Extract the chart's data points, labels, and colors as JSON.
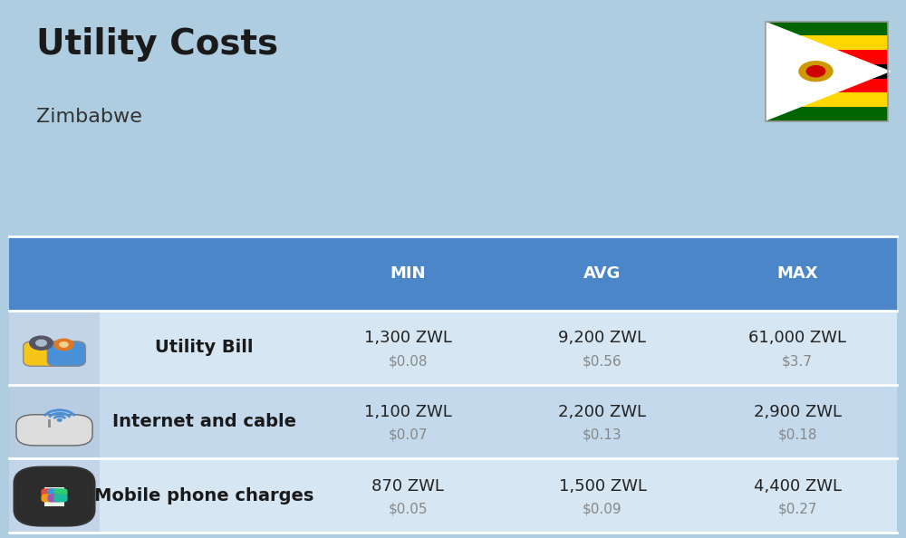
{
  "title": "Utility Costs",
  "subtitle": "Zimbabwe",
  "background_color": "#aecde0",
  "header_bg_color": "#4a86c8",
  "header_text_color": "#ffffff",
  "row_bg_color_1": "#d6e6f2",
  "row_bg_color_2": "#c5d9ec",
  "headers": [
    "",
    "",
    "MIN",
    "AVG",
    "MAX"
  ],
  "rows": [
    {
      "label": "Utility Bill",
      "min_zwl": "1,300 ZWL",
      "min_usd": "$0.08",
      "avg_zwl": "9,200 ZWL",
      "avg_usd": "$0.56",
      "max_zwl": "61,000 ZWL",
      "max_usd": "$3.7",
      "icon": "utility"
    },
    {
      "label": "Internet and cable",
      "min_zwl": "1,100 ZWL",
      "min_usd": "$0.07",
      "avg_zwl": "2,200 ZWL",
      "avg_usd": "$0.13",
      "max_zwl": "2,900 ZWL",
      "max_usd": "$0.18",
      "icon": "internet"
    },
    {
      "label": "Mobile phone charges",
      "min_zwl": "870 ZWL",
      "min_usd": "$0.05",
      "avg_zwl": "1,500 ZWL",
      "avg_usd": "$0.09",
      "max_zwl": "4,400 ZWL",
      "max_usd": "$0.27",
      "icon": "mobile"
    }
  ],
  "title_fontsize": 28,
  "subtitle_fontsize": 16,
  "header_fontsize": 13,
  "cell_fontsize": 13,
  "cell_sub_fontsize": 11,
  "label_fontsize": 14,
  "zwl_color": "#222222",
  "usd_color": "#888888"
}
